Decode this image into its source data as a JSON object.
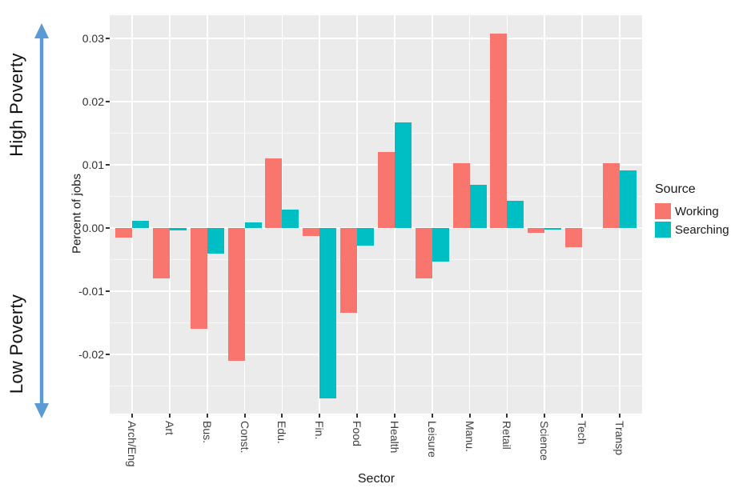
{
  "annotations": {
    "high_poverty": "High Poverty",
    "low_poverty": "Low Poverty",
    "arrow_color": "#5B9BD5"
  },
  "chart_data": {
    "type": "bar",
    "title": "",
    "xlabel": "Sector",
    "ylabel": "Percent of jobs",
    "categories": [
      "Arch/Eng",
      "Art",
      "Bus.",
      "Const.",
      "Edu.",
      "Fin.",
      "Food",
      "Health",
      "Leisure",
      "Manu.",
      "Retail",
      "Science",
      "Tech",
      "Transp"
    ],
    "series": [
      {
        "name": "Working",
        "color": "#F8766D",
        "values": [
          -0.0015,
          -0.008,
          -0.016,
          -0.021,
          0.011,
          -0.0013,
          -0.0135,
          0.012,
          -0.008,
          0.0103,
          0.0308,
          -0.0008,
          -0.003,
          0.0102
        ]
      },
      {
        "name": "Searching",
        "color": "#00BFC4",
        "values": [
          0.0011,
          -0.0004,
          -0.004,
          0.0009,
          0.0029,
          -0.027,
          -0.0028,
          0.0167,
          -0.0053,
          0.0068,
          0.0043,
          -0.0003,
          0,
          0.0091
        ]
      }
    ],
    "ylim": [
      -0.0294,
      0.0337
    ],
    "yticks": [
      {
        "value": 0.03,
        "label": "0.03"
      },
      {
        "value": 0.02,
        "label": "0.02"
      },
      {
        "value": 0.01,
        "label": "0.01"
      },
      {
        "value": 0,
        "label": "0.00"
      },
      {
        "value": -0.01,
        "label": "-0.01"
      },
      {
        "value": -0.02,
        "label": "-0.02"
      }
    ],
    "yticks_minor": [
      0.025,
      0.015,
      0.005,
      -0.005,
      -0.015,
      -0.025
    ],
    "legend": {
      "title": "Source",
      "position": "right"
    },
    "panel_bg": "#EBEBEB",
    "grid_color": "#FFFFFF",
    "grid": true
  }
}
